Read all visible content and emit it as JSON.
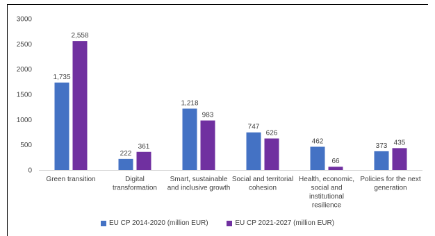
{
  "chart_data": {
    "type": "bar",
    "title": "",
    "xlabel": "",
    "ylabel": "",
    "ylim": [
      0,
      3000
    ],
    "yticks": [
      0,
      500,
      1000,
      1500,
      2000,
      2500,
      3000
    ],
    "grid": false,
    "legend_position": "bottom",
    "categories": [
      "Green transition",
      "Digital transformation",
      "Smart, sustainable and inclusive growth",
      "Social and territorial cohesion",
      "Health, economic, social and institutional resilience",
      "Policies for the next generation"
    ],
    "category_lines": [
      [
        "Green transition"
      ],
      [
        "Digital",
        "transformation"
      ],
      [
        "Smart, sustainable",
        "and inclusive growth"
      ],
      [
        "Social and territorial",
        "cohesion"
      ],
      [
        "Health, economic,",
        "social and",
        "institutional",
        "resilience"
      ],
      [
        "Policies for the next",
        "generation"
      ]
    ],
    "series": [
      {
        "name": "EU CP 2014-2020 (million EUR)",
        "color": "#4472C4",
        "values": [
          1735,
          222,
          1218,
          747,
          462,
          373
        ],
        "labels": [
          "1,735",
          "222",
          "1,218",
          "747",
          "462",
          "373"
        ]
      },
      {
        "name": "EU CP 2021-2027 (million EUR)",
        "color": "#7030A0",
        "values": [
          2558,
          361,
          983,
          626,
          66,
          435
        ],
        "labels": [
          "2,558",
          "361",
          "983",
          "626",
          "66",
          "435"
        ]
      }
    ]
  }
}
